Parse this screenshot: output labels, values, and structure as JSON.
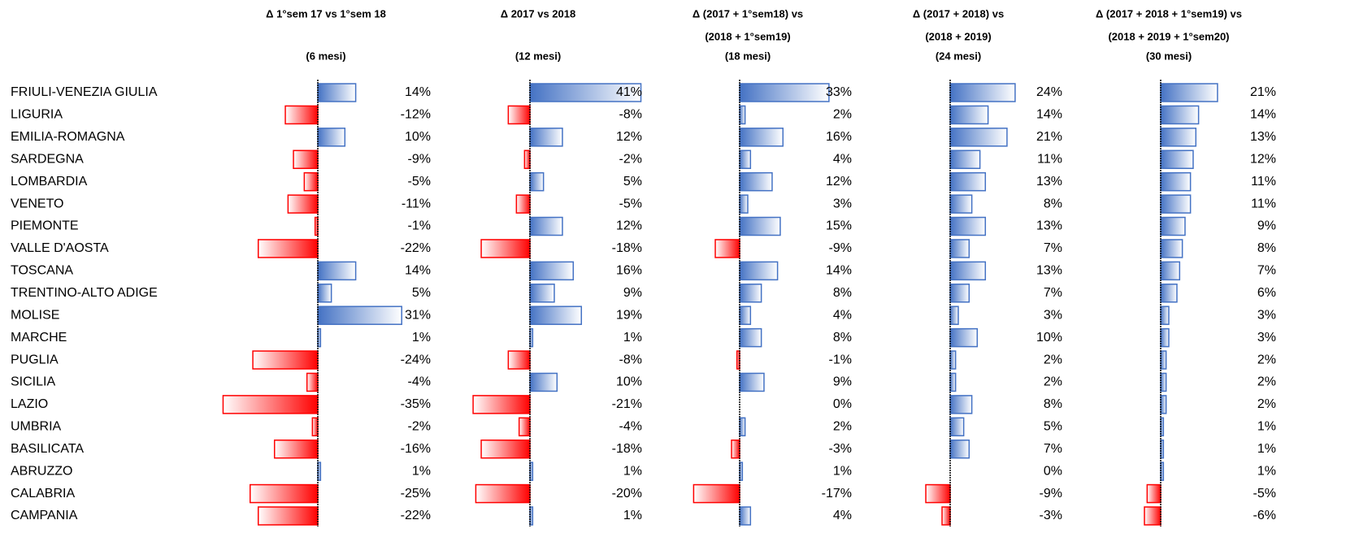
{
  "chart_data": {
    "type": "bar",
    "orientation": "horizontal",
    "positive_color": "#4472c4",
    "negative_color": "#ff0000",
    "categories": [
      "FRIULI-VENEZIA GIULIA",
      "LIGURIA",
      "EMILIA-ROMAGNA",
      "SARDEGNA",
      "LOMBARDIA",
      "VENETO",
      "PIEMONTE",
      "VALLE D'AOSTA",
      "TOSCANA",
      "TRENTINO-ALTO ADIGE",
      "MOLISE",
      "MARCHE",
      "PUGLIA",
      "SICILIA",
      "LAZIO",
      "UMBRIA",
      "BASILICATA",
      "ABRUZZO",
      "CALABRIA",
      "CAMPANIA"
    ],
    "series": [
      {
        "title": "Δ 1°sem 17 vs 1°sem 18",
        "period": "(6 mesi)",
        "values": [
          14,
          -12,
          10,
          -9,
          -5,
          -11,
          -1,
          -22,
          14,
          5,
          31,
          1,
          -24,
          -4,
          -35,
          -2,
          -16,
          1,
          -25,
          -22
        ],
        "value_labels": [
          "14%",
          "-12%",
          "10%",
          "-9%",
          "-5%",
          "-11%",
          "-1%",
          "-22%",
          "14%",
          "5%",
          "31%",
          "1%",
          "-24%",
          "-4%",
          "-35%",
          "-2%",
          "-16%",
          "1%",
          "-25%",
          "-22%"
        ]
      },
      {
        "title": "Δ 2017 vs 2018",
        "period": "(12 mesi)",
        "values": [
          41,
          -8,
          12,
          -2,
          5,
          -5,
          12,
          -18,
          16,
          9,
          19,
          1,
          -8,
          10,
          -21,
          -4,
          -18,
          1,
          -20,
          1
        ],
        "value_labels": [
          "41%",
          "-8%",
          "12%",
          "-2%",
          "5%",
          "-5%",
          "12%",
          "-18%",
          "16%",
          "9%",
          "19%",
          "1%",
          "-8%",
          "10%",
          "-21%",
          "-4%",
          "-18%",
          "1%",
          "-20%",
          "1%"
        ]
      },
      {
        "title": "Δ (2017 + 1°sem18) vs",
        "subtitle": "(2018 + 1°sem19)",
        "period": "(18 mesi)",
        "values": [
          33,
          2,
          16,
          4,
          12,
          3,
          15,
          -9,
          14,
          8,
          4,
          8,
          -1,
          9,
          0,
          2,
          -3,
          1,
          -17,
          4
        ],
        "value_labels": [
          "33%",
          "2%",
          "16%",
          "4%",
          "12%",
          "3%",
          "15%",
          "-9%",
          "14%",
          "8%",
          "4%",
          "8%",
          "-1%",
          "9%",
          "0%",
          "2%",
          "-3%",
          "1%",
          "-17%",
          "4%"
        ]
      },
      {
        "title": "Δ (2017 + 2018) vs",
        "subtitle": "(2018 + 2019)",
        "period": "(24 mesi)",
        "values": [
          24,
          14,
          21,
          11,
          13,
          8,
          13,
          7,
          13,
          7,
          3,
          10,
          2,
          2,
          8,
          5,
          7,
          0,
          -9,
          -3
        ],
        "value_labels": [
          "24%",
          "14%",
          "21%",
          "11%",
          "13%",
          "8%",
          "13%",
          "7%",
          "13%",
          "7%",
          "3%",
          "10%",
          "2%",
          "2%",
          "8%",
          "5%",
          "7%",
          "0%",
          "-9%",
          "-3%"
        ]
      },
      {
        "title": "Δ (2017 + 2018 + 1°sem19) vs",
        "subtitle": "(2018 + 2019 + 1°sem20)",
        "period": "(30 mesi)",
        "values": [
          21,
          14,
          13,
          12,
          11,
          11,
          9,
          8,
          7,
          6,
          3,
          3,
          2,
          2,
          2,
          1,
          1,
          1,
          -5,
          -6
        ],
        "value_labels": [
          "21%",
          "14%",
          "13%",
          "12%",
          "11%",
          "11%",
          "9%",
          "8%",
          "7%",
          "6%",
          "3%",
          "3%",
          "2%",
          "2%",
          "2%",
          "1%",
          "1%",
          "1%",
          "-5%",
          "-6%"
        ]
      }
    ]
  }
}
